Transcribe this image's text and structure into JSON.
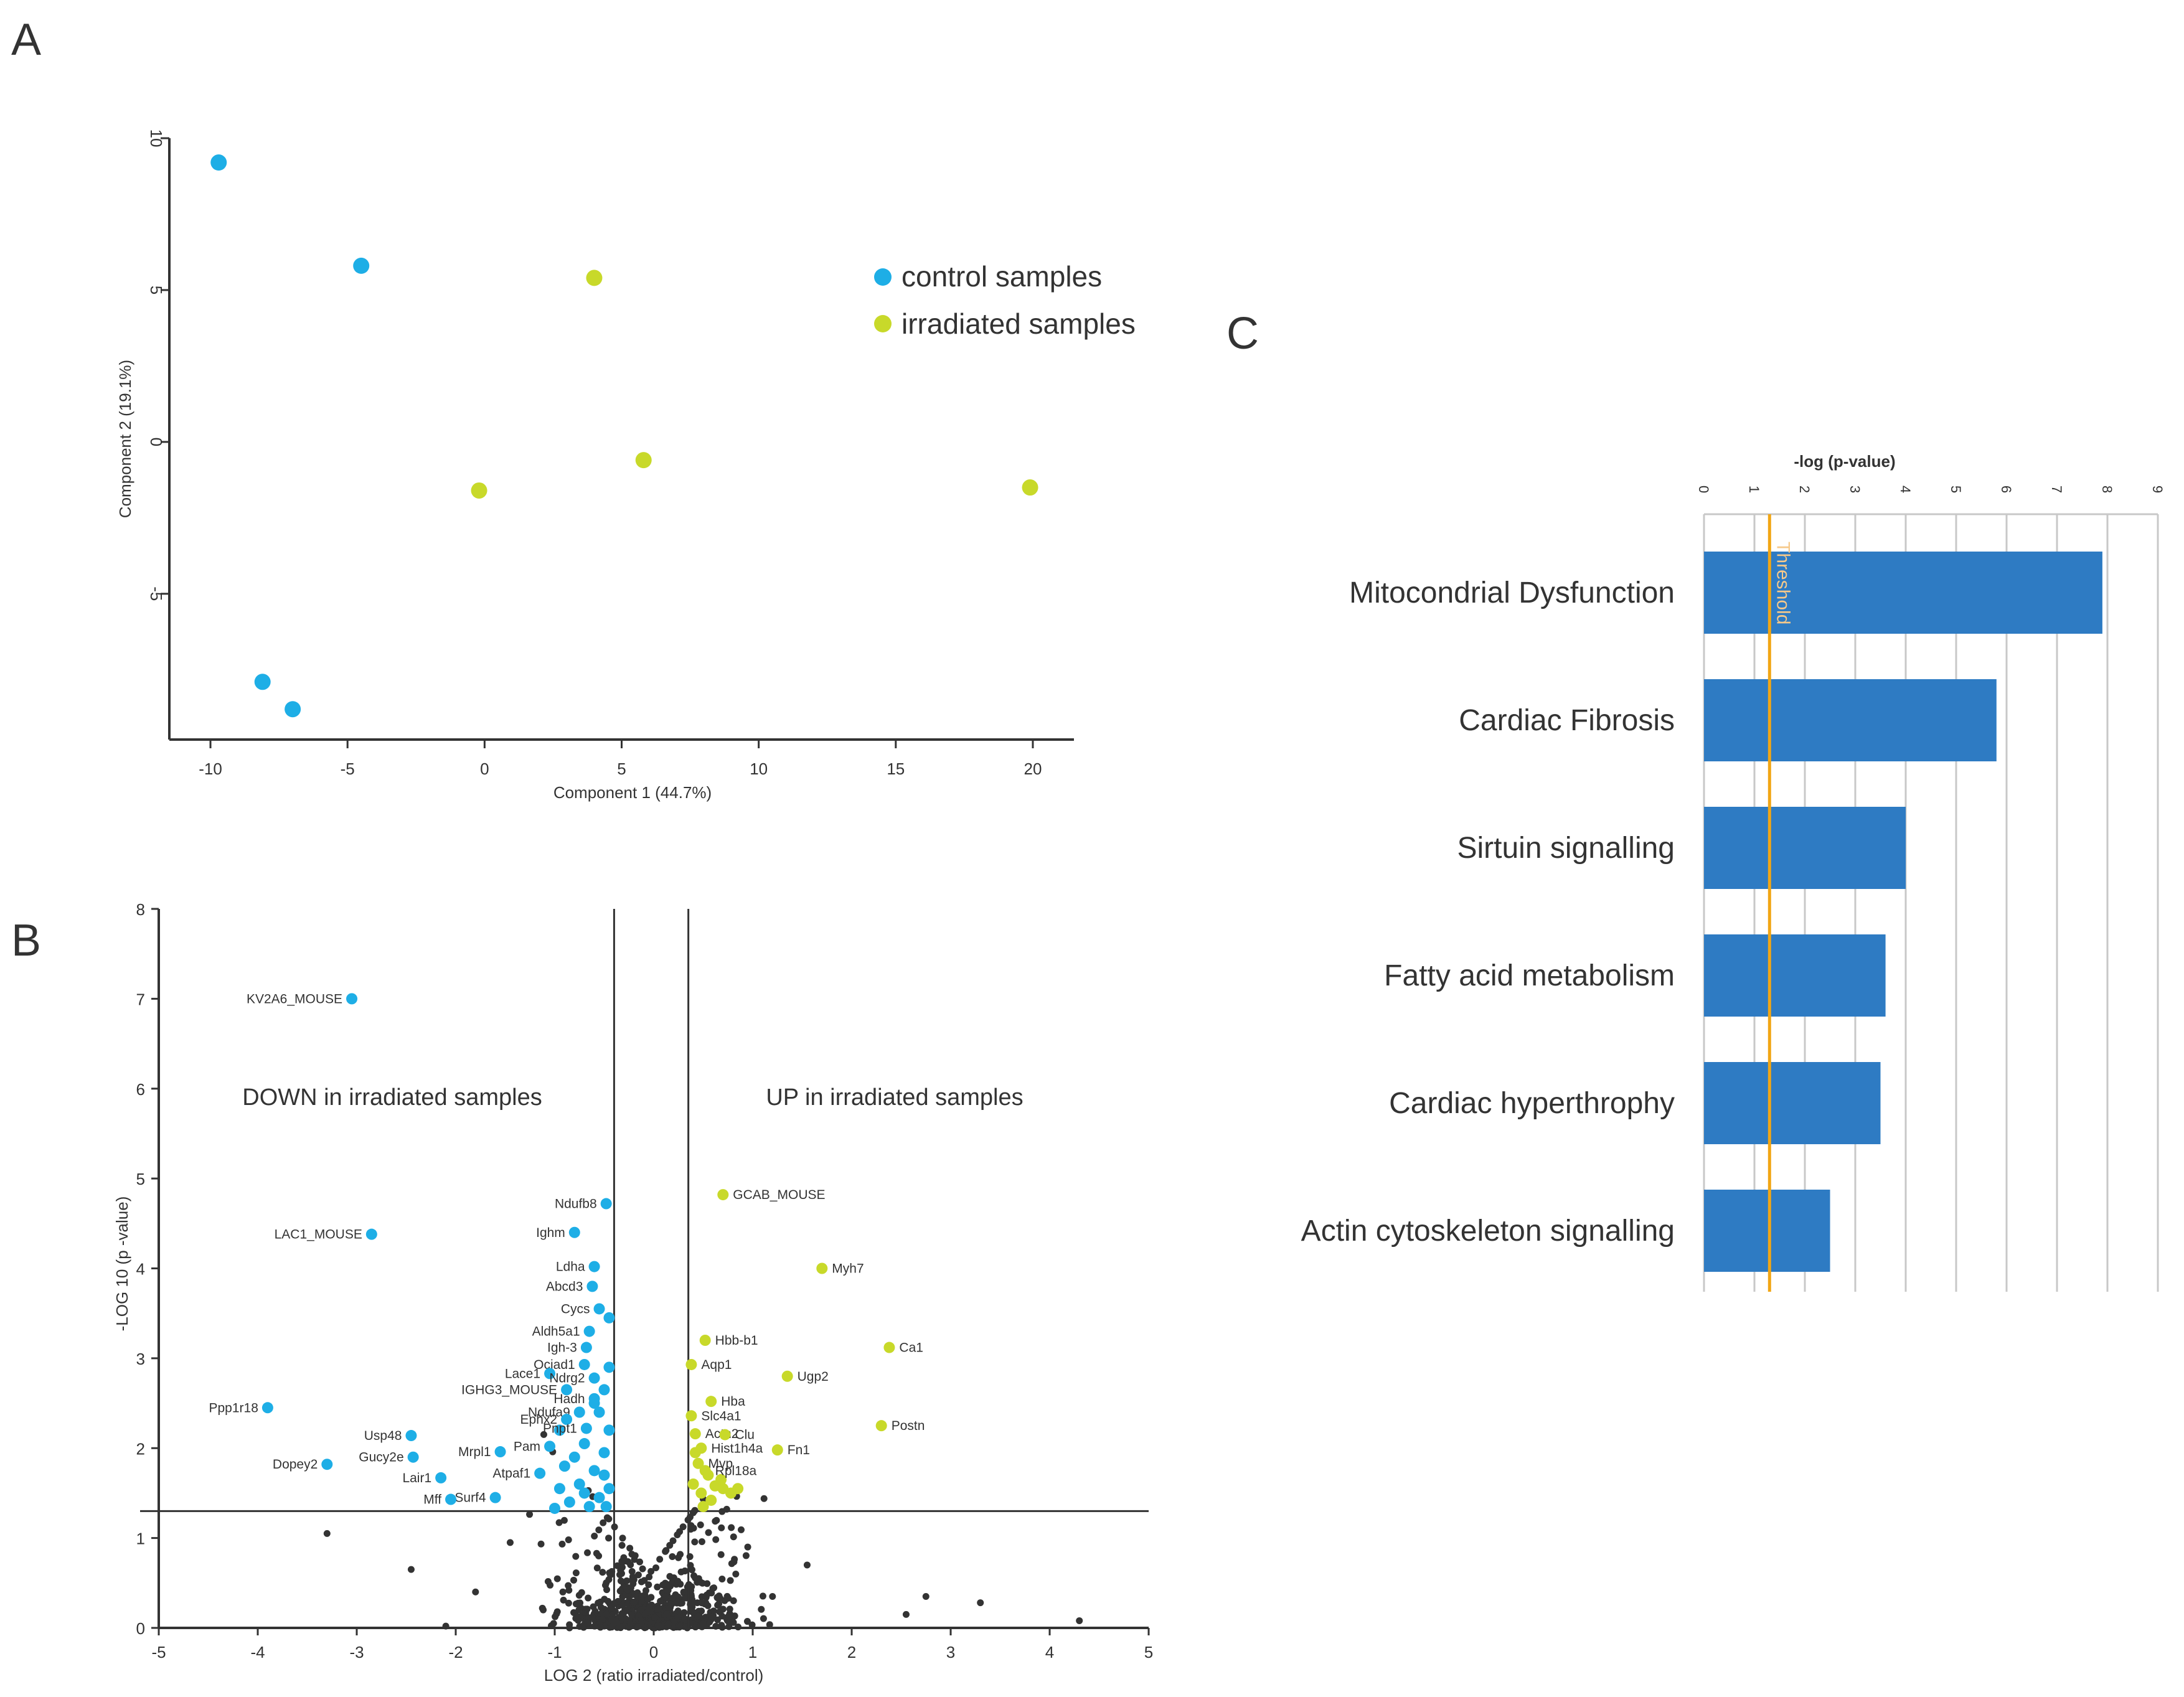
{
  "panels": {
    "a": {
      "label": "A"
    },
    "b": {
      "label": "B"
    },
    "c": {
      "label": "C"
    }
  },
  "colors": {
    "control": "#1eaee6",
    "irradiated": "#c8d92a",
    "bar": "#2e7bc3",
    "threshold": "#f2a614",
    "dots": "#333333"
  },
  "chart_data": [
    {
      "type": "scatter",
      "title": "",
      "xlabel": "Component 1 (44.7%)",
      "ylabel": "Component 2 (19.1%)",
      "xlim": [
        -11.5,
        21.5
      ],
      "ylim": [
        -9.8,
        10
      ],
      "xticks": [
        -10,
        -5,
        0,
        5,
        10,
        15,
        20
      ],
      "yticks": [
        10,
        5,
        0,
        -5
      ],
      "series": [
        {
          "name": "control samples",
          "color": "#1eaee6",
          "points": [
            [
              -9.7,
              9.2
            ],
            [
              -4.5,
              5.8
            ],
            [
              -8.1,
              -7.9
            ],
            [
              -7.0,
              -8.8
            ]
          ]
        },
        {
          "name": "irradiated samples",
          "color": "#c8d92a",
          "points": [
            [
              4.0,
              5.4
            ],
            [
              -0.2,
              -1.6
            ],
            [
              5.8,
              -0.6
            ],
            [
              19.9,
              -1.5
            ]
          ]
        }
      ],
      "legend": [
        "control samples",
        "irradiated samples"
      ]
    },
    {
      "type": "scatter",
      "title": "",
      "xlabel": "LOG 2 (ratio irradiated/control)",
      "ylabel": "-LOG 10 (p -value)",
      "xlim": [
        -5,
        5
      ],
      "ylim": [
        0,
        8
      ],
      "xticks": [
        -5,
        -4,
        -3,
        -2,
        -1,
        0,
        1,
        2,
        3,
        4,
        5
      ],
      "yticks": [
        0,
        1,
        2,
        3,
        4,
        5,
        6,
        7,
        8
      ],
      "vlines": [
        -0.4,
        0.35
      ],
      "hline": 1.3,
      "annotations": [
        "DOWN in irradiated samples",
        "UP in irradiated samples"
      ],
      "down_labels": [
        {
          "name": "KV2A6_MOUSE",
          "x": -3.05,
          "y": 7.0
        },
        {
          "name": "LAC1_MOUSE",
          "x": -2.85,
          "y": 4.38
        },
        {
          "name": "Ndufb8",
          "x": -0.48,
          "y": 4.72
        },
        {
          "name": "Ighm",
          "x": -0.8,
          "y": 4.4
        },
        {
          "name": "Ldha",
          "x": -0.6,
          "y": 4.02
        },
        {
          "name": "Abcd3",
          "x": -0.62,
          "y": 3.8
        },
        {
          "name": "Cycs",
          "x": -0.55,
          "y": 3.55
        },
        {
          "name": "Aldh5a1",
          "x": -0.65,
          "y": 3.3
        },
        {
          "name": "Igh-3",
          "x": -0.68,
          "y": 3.12
        },
        {
          "name": "Ociad1",
          "x": -0.7,
          "y": 2.93
        },
        {
          "name": "Lace1",
          "x": -1.05,
          "y": 2.83
        },
        {
          "name": "Ndrg2",
          "x": -0.6,
          "y": 2.78
        },
        {
          "name": "IGHG3_MOUSE",
          "x": -0.88,
          "y": 2.65
        },
        {
          "name": "Hadh",
          "x": -0.6,
          "y": 2.55
        },
        {
          "name": "Ppp1r18",
          "x": -3.9,
          "y": 2.45
        },
        {
          "name": "Ndufa9",
          "x": -0.75,
          "y": 2.4
        },
        {
          "name": "Ephx2",
          "x": -0.88,
          "y": 2.32
        },
        {
          "name": "Pnpt1",
          "x": -0.68,
          "y": 2.22
        },
        {
          "name": "Usp48",
          "x": -2.45,
          "y": 2.14
        },
        {
          "name": "Pam",
          "x": -1.05,
          "y": 2.02
        },
        {
          "name": "Mrpl1",
          "x": -1.55,
          "y": 1.96
        },
        {
          "name": "Gucy2e",
          "x": -2.43,
          "y": 1.9
        },
        {
          "name": "Dopey2",
          "x": -3.3,
          "y": 1.82
        },
        {
          "name": "Atpaf1",
          "x": -1.15,
          "y": 1.72
        },
        {
          "name": "Lair1",
          "x": -2.15,
          "y": 1.67
        },
        {
          "name": "Surf4",
          "x": -1.6,
          "y": 1.45
        },
        {
          "name": "Mff",
          "x": -2.05,
          "y": 1.43
        }
      ],
      "up_labels": [
        {
          "name": "GCAB_MOUSE",
          "x": 0.7,
          "y": 4.82
        },
        {
          "name": "Myh7",
          "x": 1.7,
          "y": 4.0
        },
        {
          "name": "Hbb-b1",
          "x": 0.52,
          "y": 3.2
        },
        {
          "name": "Ca1",
          "x": 2.38,
          "y": 3.12
        },
        {
          "name": "Aqp1",
          "x": 0.38,
          "y": 2.93
        },
        {
          "name": "Ugp2",
          "x": 1.35,
          "y": 2.8
        },
        {
          "name": "Hba",
          "x": 0.58,
          "y": 2.52
        },
        {
          "name": "Slc4a1",
          "x": 0.38,
          "y": 2.36
        },
        {
          "name": "Postn",
          "x": 2.3,
          "y": 2.25
        },
        {
          "name": "Actn2",
          "x": 0.42,
          "y": 2.16
        },
        {
          "name": "Clu",
          "x": 0.72,
          "y": 2.15
        },
        {
          "name": "Hist1h4a",
          "x": 0.48,
          "y": 2.0
        },
        {
          "name": "Fn1",
          "x": 1.25,
          "y": 1.98
        },
        {
          "name": "Mvp",
          "x": 0.45,
          "y": 1.83
        },
        {
          "name": "Rpl18a",
          "x": 0.52,
          "y": 1.75
        }
      ]
    },
    {
      "type": "bar",
      "orientation": "horizontal",
      "title": "-log (p-value)",
      "categories": [
        "Mitocondrial Dysfunction",
        "Cardiac Fibrosis",
        "Sirtuin signalling",
        "Fatty acid metabolism",
        "Cardiac hyperthrophy",
        "Actin cytoskeleton signalling"
      ],
      "values": [
        7.9,
        5.8,
        4.0,
        3.6,
        3.5,
        2.5
      ],
      "xlim": [
        0,
        9
      ],
      "xticks": [
        0,
        1,
        2,
        3,
        4,
        5,
        6,
        7,
        8,
        9
      ],
      "threshold": {
        "value": 1.3,
        "label": "Threshold"
      }
    }
  ]
}
